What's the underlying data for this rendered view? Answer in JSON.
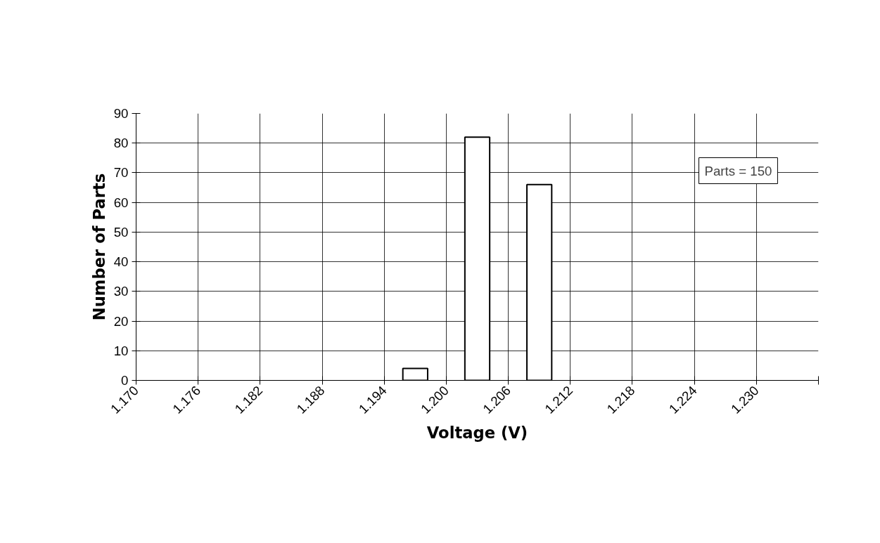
{
  "chart_data": {
    "type": "histogram",
    "xlabel": "Voltage (V)",
    "ylabel": "Number of Parts",
    "bins": [
      1.17,
      1.176,
      1.182,
      1.188,
      1.194,
      1.2,
      1.206,
      1.212,
      1.218,
      1.224,
      1.23,
      1.236
    ],
    "values": [
      0,
      0,
      0,
      0,
      4,
      82,
      66,
      0,
      0,
      0,
      0
    ],
    "color": "#ffffff",
    "xlim": [
      1.17,
      1.236
    ],
    "xticks": [
      {
        "value": 1.17,
        "label": "1.170"
      },
      {
        "value": 1.176,
        "label": "1.176"
      },
      {
        "value": 1.182,
        "label": "1.182"
      },
      {
        "value": 1.188,
        "label": "1.188"
      },
      {
        "value": 1.194,
        "label": "1.194"
      },
      {
        "value": 1.2,
        "label": "1.200"
      },
      {
        "value": 1.206,
        "label": "1.206"
      },
      {
        "value": 1.212,
        "label": "1.212"
      },
      {
        "value": 1.218,
        "label": "1.218"
      },
      {
        "value": 1.224,
        "label": "1.224"
      },
      {
        "value": 1.23,
        "label": "1.230"
      },
      {
        "value": 1.236,
        "label": null
      }
    ],
    "ylim": [
      0,
      90
    ],
    "yticks": [
      0,
      10,
      20,
      30,
      40,
      50,
      60,
      70,
      80,
      90
    ],
    "grid": true,
    "annotations": [
      "Parts = 150"
    ]
  }
}
